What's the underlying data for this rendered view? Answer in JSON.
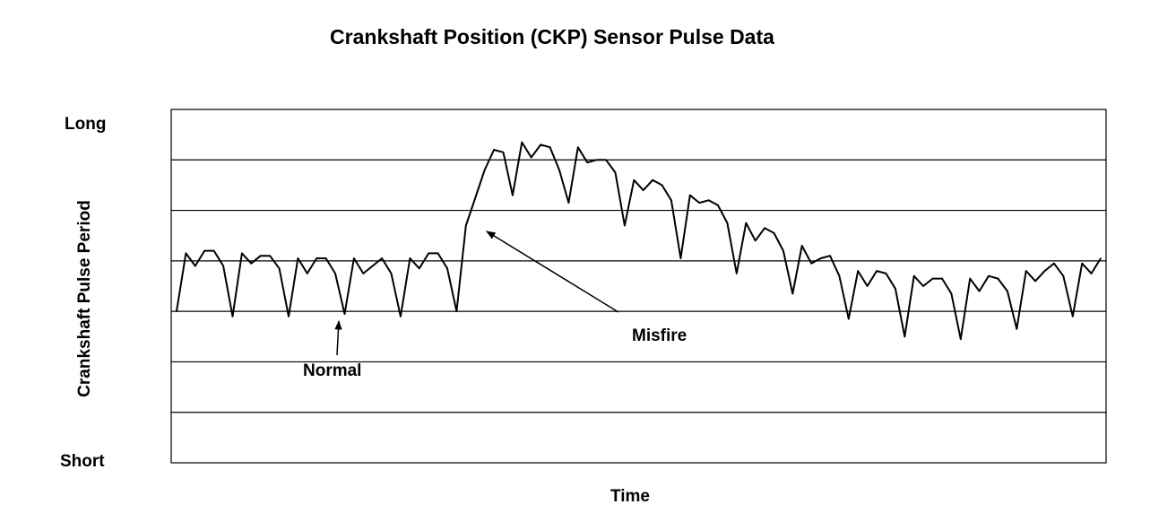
{
  "chart_data": {
    "type": "line",
    "title": "Crankshaft Position (CKP) Sensor Pulse Data",
    "xlabel": "Time",
    "ylabel": "Crankshaft Pulse Period",
    "y_top_label": "Long",
    "y_bottom_label": "Short",
    "ylim": [
      0,
      7
    ],
    "grid": "horizontal",
    "annotations": [
      {
        "text": "Normal",
        "target_x": 30
      },
      {
        "text": "Misfire",
        "target_x": 55
      }
    ],
    "series": [
      {
        "values": [
          3.0,
          4.15,
          3.9,
          4.2,
          4.2,
          3.9,
          2.9,
          4.15,
          3.95,
          4.1,
          4.1,
          3.85,
          2.9,
          4.05,
          3.75,
          4.05,
          4.05,
          3.75,
          2.95,
          4.05,
          3.75,
          3.9,
          4.05,
          3.75,
          2.9,
          4.05,
          3.85,
          4.15,
          4.15,
          3.85,
          3.0,
          4.7,
          5.25,
          5.8,
          6.2,
          6.15,
          5.3,
          6.35,
          6.05,
          6.3,
          6.25,
          5.8,
          5.15,
          6.25,
          5.95,
          6.0,
          6.0,
          5.75,
          4.7,
          5.6,
          5.4,
          5.6,
          5.5,
          5.2,
          4.05,
          5.3,
          5.15,
          5.2,
          5.1,
          4.75,
          3.75,
          4.75,
          4.4,
          4.65,
          4.55,
          4.2,
          3.35,
          4.3,
          3.95,
          4.05,
          4.1,
          3.7,
          2.85,
          3.8,
          3.5,
          3.8,
          3.75,
          3.45,
          2.5,
          3.7,
          3.5,
          3.65,
          3.65,
          3.35,
          2.45,
          3.65,
          3.4,
          3.7,
          3.65,
          3.4,
          2.65,
          3.8,
          3.6,
          3.8,
          3.95,
          3.7,
          2.9,
          3.95,
          3.75,
          4.05
        ]
      }
    ]
  }
}
